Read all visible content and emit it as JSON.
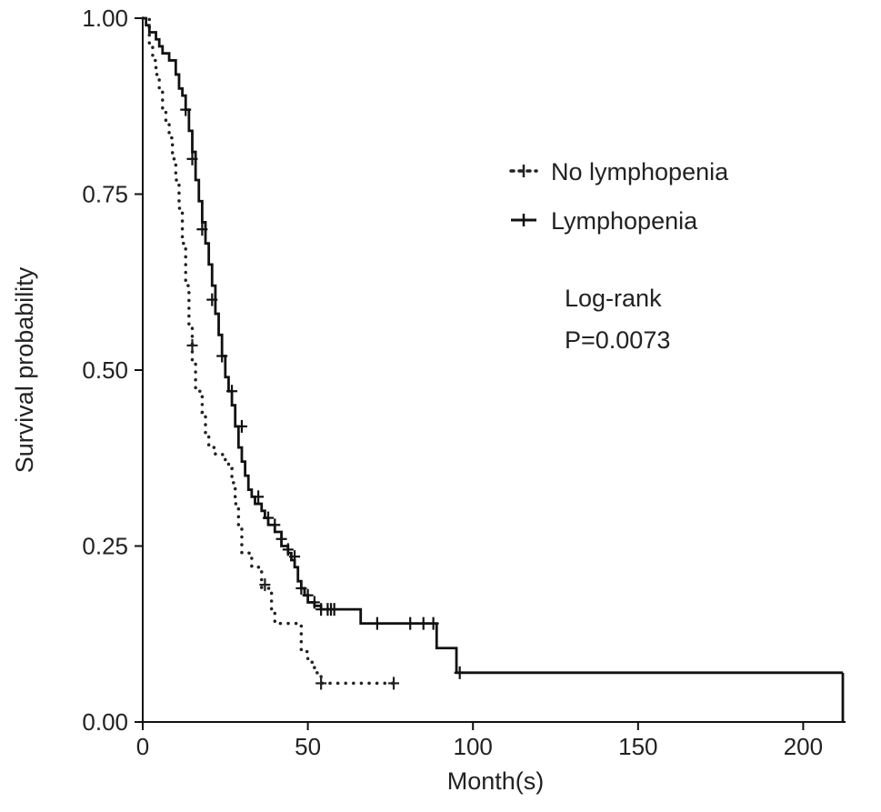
{
  "chart_data": {
    "type": "line",
    "xlabel": "Month(s)",
    "ylabel": "Survival probability",
    "xlim": [
      0,
      212
    ],
    "ylim": [
      0,
      1
    ],
    "x_ticks": [
      "0",
      "50",
      "100",
      "150",
      "200"
    ],
    "x_tick_values": [
      0,
      50,
      100,
      150,
      200
    ],
    "y_ticks": [
      "0.00",
      "0.25",
      "0.50",
      "0.75",
      "1.00"
    ],
    "y_tick_values": [
      0,
      0.25,
      0.5,
      0.75,
      1.0
    ],
    "grid": false,
    "legend_position": "top-right",
    "annotation": [
      "Log-rank",
      "P=0.0073"
    ],
    "series": [
      {
        "name": "No lymphopenia",
        "style": "dotted",
        "color": "#222222",
        "x": [
          0,
          2,
          3,
          4,
          5,
          6,
          7,
          8,
          9,
          10,
          11,
          12,
          13,
          14,
          15,
          16,
          18,
          19,
          20,
          22,
          25,
          26,
          27,
          28,
          29,
          30,
          33,
          36,
          39,
          40,
          48,
          50,
          52,
          54,
          76
        ],
        "y": [
          1.0,
          0.96,
          0.94,
          0.92,
          0.9,
          0.87,
          0.85,
          0.83,
          0.8,
          0.77,
          0.73,
          0.68,
          0.62,
          0.56,
          0.51,
          0.47,
          0.44,
          0.41,
          0.39,
          0.38,
          0.37,
          0.36,
          0.34,
          0.31,
          0.28,
          0.24,
          0.22,
          0.19,
          0.16,
          0.14,
          0.1,
          0.085,
          0.07,
          0.055,
          0.055
        ],
        "censor_x": [
          15,
          37,
          54,
          76
        ],
        "censor_y": [
          0.535,
          0.195,
          0.055,
          0.055
        ]
      },
      {
        "name": "Lymphopenia",
        "style": "solid",
        "color": "#111111",
        "x": [
          0,
          1,
          2,
          4,
          5,
          6,
          8,
          10,
          11,
          12,
          13,
          14,
          15,
          16,
          17,
          18,
          19,
          20,
          21,
          22,
          23,
          24,
          25,
          26,
          27,
          28,
          29,
          30,
          31,
          32,
          33,
          34,
          36,
          37,
          38,
          40,
          42,
          44,
          45,
          46,
          47,
          48,
          49,
          50,
          52,
          54,
          66,
          88,
          89,
          95,
          212
        ],
        "y": [
          1.0,
          0.99,
          0.98,
          0.97,
          0.96,
          0.95,
          0.94,
          0.92,
          0.9,
          0.89,
          0.87,
          0.84,
          0.81,
          0.77,
          0.74,
          0.71,
          0.68,
          0.65,
          0.62,
          0.58,
          0.55,
          0.52,
          0.49,
          0.47,
          0.45,
          0.42,
          0.39,
          0.37,
          0.35,
          0.33,
          0.32,
          0.31,
          0.3,
          0.29,
          0.28,
          0.27,
          0.25,
          0.24,
          0.23,
          0.22,
          0.2,
          0.19,
          0.18,
          0.17,
          0.165,
          0.16,
          0.14,
          0.14,
          0.105,
          0.07,
          0.07
        ],
        "censor_x": [
          13,
          15,
          18,
          21,
          24,
          27,
          30,
          35,
          38,
          40,
          42,
          44,
          46,
          48,
          50,
          52,
          54,
          56,
          57,
          58,
          71,
          81,
          85,
          88,
          96
        ],
        "censor_y": [
          0.87,
          0.8,
          0.7,
          0.6,
          0.52,
          0.47,
          0.42,
          0.32,
          0.29,
          0.28,
          0.26,
          0.245,
          0.235,
          0.19,
          0.18,
          0.17,
          0.16,
          0.16,
          0.16,
          0.16,
          0.14,
          0.14,
          0.14,
          0.14,
          0.07
        ]
      }
    ]
  }
}
